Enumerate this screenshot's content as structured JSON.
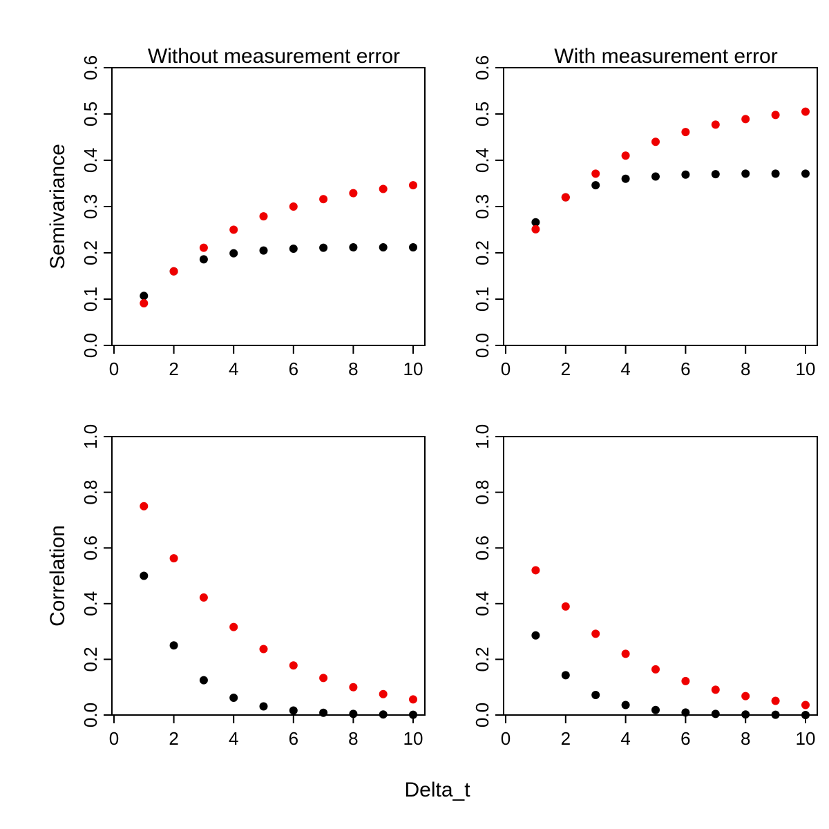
{
  "figure": {
    "shared_xlabel": "Delta_t"
  },
  "colors": {
    "series_a": "#000000",
    "series_b": "#ee0000"
  },
  "chart_data": [
    {
      "type": "scatter",
      "title": "Without measurement error",
      "xlabel": "",
      "ylabel": "Semivariance",
      "xlim": [
        0,
        10
      ],
      "ylim": [
        0,
        0.6
      ],
      "xticks": [
        "0",
        "2",
        "4",
        "6",
        "8",
        "10"
      ],
      "yticks": [
        "0.0",
        "0.1",
        "0.2",
        "0.3",
        "0.4",
        "0.5",
        "0.6"
      ],
      "x": [
        1,
        2,
        3,
        4,
        5,
        6,
        7,
        8,
        9,
        10
      ],
      "series": [
        {
          "color": "#000000",
          "values": [
            0.107,
            0.16,
            0.186,
            0.199,
            0.205,
            0.209,
            0.211,
            0.212,
            0.212,
            0.212
          ]
        },
        {
          "color": "#ee0000",
          "values": [
            0.091,
            0.16,
            0.211,
            0.25,
            0.279,
            0.3,
            0.316,
            0.329,
            0.338,
            0.346
          ]
        }
      ]
    },
    {
      "type": "scatter",
      "title": "With measurement error",
      "xlabel": "",
      "ylabel": "",
      "xlim": [
        0,
        10
      ],
      "ylim": [
        0,
        0.6
      ],
      "xticks": [
        "0",
        "2",
        "4",
        "6",
        "8",
        "10"
      ],
      "yticks": [
        "0.0",
        "0.1",
        "0.2",
        "0.3",
        "0.4",
        "0.5",
        "0.6"
      ],
      "x": [
        1,
        2,
        3,
        4,
        5,
        6,
        7,
        8,
        9,
        10
      ],
      "series": [
        {
          "color": "#000000",
          "values": [
            0.266,
            0.32,
            0.346,
            0.36,
            0.365,
            0.369,
            0.37,
            0.371,
            0.371,
            0.371
          ]
        },
        {
          "color": "#ee0000",
          "values": [
            0.251,
            0.32,
            0.371,
            0.41,
            0.44,
            0.461,
            0.477,
            0.489,
            0.498,
            0.505
          ]
        }
      ]
    },
    {
      "type": "scatter",
      "title": "",
      "xlabel": "",
      "ylabel": "Correlation",
      "xlim": [
        0,
        10
      ],
      "ylim": [
        0,
        1
      ],
      "xticks": [
        "0",
        "2",
        "4",
        "6",
        "8",
        "10"
      ],
      "yticks": [
        "0.0",
        "0.2",
        "0.4",
        "0.6",
        "0.8",
        "1.0"
      ],
      "x": [
        1,
        2,
        3,
        4,
        5,
        6,
        7,
        8,
        9,
        10
      ],
      "series": [
        {
          "color": "#000000",
          "values": [
            0.5,
            0.25,
            0.125,
            0.062,
            0.031,
            0.016,
            0.008,
            0.004,
            0.002,
            0.001
          ]
        },
        {
          "color": "#ee0000",
          "values": [
            0.75,
            0.563,
            0.422,
            0.316,
            0.237,
            0.178,
            0.133,
            0.1,
            0.075,
            0.056
          ]
        }
      ]
    },
    {
      "type": "scatter",
      "title": "",
      "xlabel": "",
      "ylabel": "",
      "xlim": [
        0,
        10
      ],
      "ylim": [
        0,
        1
      ],
      "xticks": [
        "0",
        "2",
        "4",
        "6",
        "8",
        "10"
      ],
      "yticks": [
        "0.0",
        "0.2",
        "0.4",
        "0.6",
        "0.8",
        "1.0"
      ],
      "x": [
        1,
        2,
        3,
        4,
        5,
        6,
        7,
        8,
        9,
        10
      ],
      "series": [
        {
          "color": "#000000",
          "values": [
            0.286,
            0.143,
            0.072,
            0.036,
            0.018,
            0.009,
            0.004,
            0.002,
            0.001,
            0.0
          ]
        },
        {
          "color": "#ee0000",
          "values": [
            0.52,
            0.39,
            0.292,
            0.22,
            0.164,
            0.122,
            0.091,
            0.068,
            0.051,
            0.036
          ]
        }
      ]
    }
  ]
}
